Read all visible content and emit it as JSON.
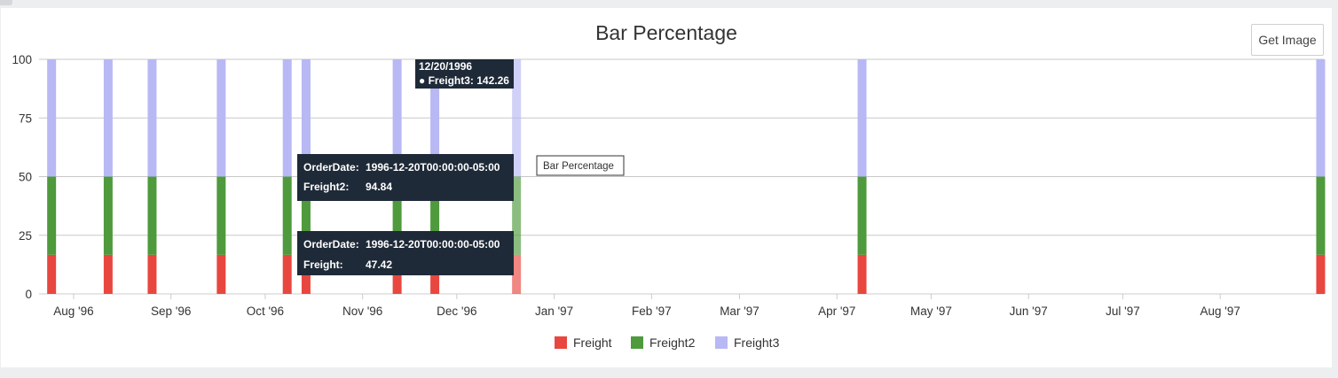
{
  "colors": {
    "freight": "#e8473f",
    "freight2": "#4e9a3c",
    "freight3": "#b8b8f5",
    "gridline": "#c8c8c8",
    "tooltip_bg": "#1f2a38"
  },
  "toolbar": {
    "get_image_label": "Get Image"
  },
  "chart_data": {
    "type": "bar",
    "stacking": "percent",
    "title": "Bar Percentage",
    "xlabel": "",
    "ylabel": "",
    "ylim": [
      0,
      100
    ],
    "yticks": [
      0,
      25,
      50,
      75,
      100
    ],
    "grid": true,
    "legend_position": "bottom-center",
    "x_tick_labels": [
      "Aug '96",
      "Sep '96",
      "Oct '96",
      "Nov '96",
      "Dec '96",
      "Jan '97",
      "Feb '97",
      "Mar '97",
      "Apr '97",
      "May '97",
      "Jun '97",
      "Jul '97",
      "Aug '97"
    ],
    "x_tick_dates": [
      "1996-08-01",
      "1996-09-01",
      "1996-10-01",
      "1996-11-01",
      "1996-12-01",
      "1997-01-01",
      "1997-02-01",
      "1997-03-01",
      "1997-04-01",
      "1997-05-01",
      "1997-06-01",
      "1997-07-01",
      "1997-08-01"
    ],
    "x_range": [
      "1996-07-21",
      "1997-09-03"
    ],
    "x": [
      "1996-07-25",
      "1996-08-12",
      "1996-08-26",
      "1996-09-17",
      "1996-10-08",
      "1996-10-14",
      "1996-11-12",
      "1996-11-24",
      "1996-12-20",
      "1997-04-09",
      "1997-09-02"
    ],
    "highlighted_index": 8,
    "series": [
      {
        "name": "Freight",
        "values": [
          16.67,
          16.67,
          16.67,
          16.67,
          16.67,
          16.67,
          16.67,
          16.67,
          16.67,
          16.67,
          16.67
        ]
      },
      {
        "name": "Freight2",
        "values": [
          33.33,
          33.33,
          33.33,
          33.33,
          33.33,
          33.33,
          33.33,
          33.33,
          33.33,
          33.33,
          33.33
        ]
      },
      {
        "name": "Freight3",
        "values": [
          50,
          50,
          50,
          50,
          50,
          50,
          50,
          50,
          50,
          50,
          50
        ]
      }
    ],
    "annotations": {
      "top_tooltip": {
        "date": "12/20/1996",
        "line": "● Freight3: 142.26"
      },
      "mid_tooltip": {
        "date_label": "OrderDate:",
        "date_value": "1996-12-20T00:00:00-05:00",
        "series_label": "Freight2:",
        "series_value": "94.84"
      },
      "low_tooltip": {
        "date_label": "OrderDate:",
        "date_value": "1996-12-20T00:00:00-05:00",
        "series_label": "Freight:",
        "series_value": "47.42"
      },
      "hover_label": "Bar Percentage"
    }
  }
}
